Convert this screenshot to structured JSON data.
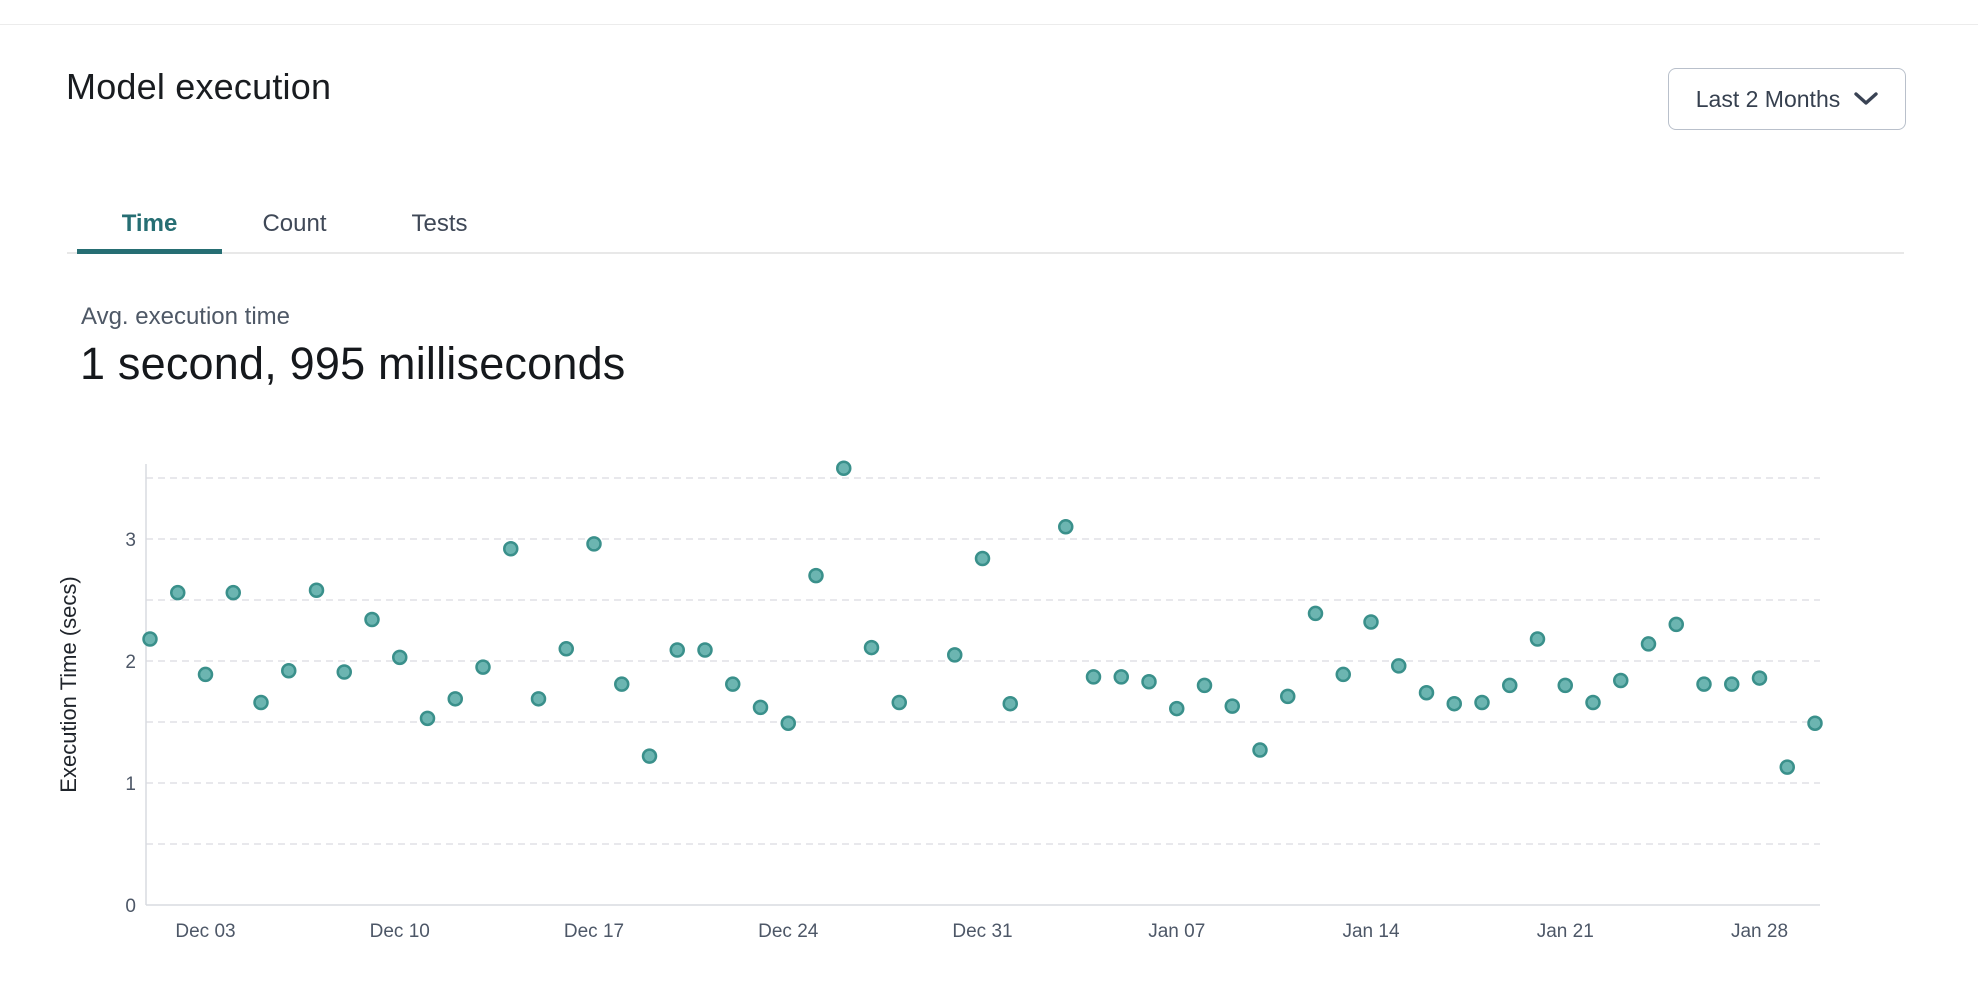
{
  "header": {
    "title": "Model execution",
    "range_selector": {
      "label": "Last 2 Months"
    }
  },
  "tabs": [
    {
      "label": "Time",
      "active": true
    },
    {
      "label": "Count",
      "active": false
    },
    {
      "label": "Tests",
      "active": false
    }
  ],
  "metric": {
    "label": "Avg. execution time",
    "value": "1 second, 995 milliseconds"
  },
  "colors": {
    "accent_teal": "#266e73",
    "point_fill": "#6cb5b1",
    "point_stroke": "#3a908b",
    "grid_line": "#e8e8ec",
    "axis_line": "#d8dbe0",
    "tick_label": "#4d5767",
    "axis_title": "#1f242b"
  },
  "chart_data": {
    "type": "scatter",
    "title": "",
    "xlabel": "",
    "ylabel": "Execution Time (secs)",
    "ylim": [
      0,
      3.6
    ],
    "yticks": [
      0,
      1,
      2,
      3
    ],
    "ygrid_step": 0.5,
    "ygrid_max": 3.5,
    "grid": "dashed",
    "legend": "none",
    "x_ticks": [
      {
        "i": 2,
        "label": "Dec 03"
      },
      {
        "i": 9,
        "label": "Dec 10"
      },
      {
        "i": 16,
        "label": "Dec 17"
      },
      {
        "i": 23,
        "label": "Dec 24"
      },
      {
        "i": 30,
        "label": "Dec 31"
      },
      {
        "i": 37,
        "label": "Jan 07"
      },
      {
        "i": 44,
        "label": "Jan 14"
      },
      {
        "i": 51,
        "label": "Jan 21"
      },
      {
        "i": 58,
        "label": "Jan 28"
      }
    ],
    "points": [
      {
        "i": 0,
        "date": "Dec 01",
        "value": 2.18
      },
      {
        "i": 1,
        "date": "Dec 02",
        "value": 2.56
      },
      {
        "i": 2,
        "date": "Dec 03",
        "value": 1.89
      },
      {
        "i": 3,
        "date": "Dec 04",
        "value": 2.56
      },
      {
        "i": 4,
        "date": "Dec 05",
        "value": 1.66
      },
      {
        "i": 5,
        "date": "Dec 06",
        "value": 1.92
      },
      {
        "i": 6,
        "date": "Dec 07",
        "value": 2.58
      },
      {
        "i": 7,
        "date": "Dec 08",
        "value": 1.91
      },
      {
        "i": 8,
        "date": "Dec 09",
        "value": 2.34
      },
      {
        "i": 9,
        "date": "Dec 10",
        "value": 2.03
      },
      {
        "i": 10,
        "date": "Dec 11",
        "value": 1.53
      },
      {
        "i": 11,
        "date": "Dec 12",
        "value": 1.69
      },
      {
        "i": 12,
        "date": "Dec 13",
        "value": 1.95
      },
      {
        "i": 13,
        "date": "Dec 14",
        "value": 2.92
      },
      {
        "i": 14,
        "date": "Dec 15",
        "value": 1.69
      },
      {
        "i": 15,
        "date": "Dec 16",
        "value": 2.1
      },
      {
        "i": 16,
        "date": "Dec 17",
        "value": 2.96
      },
      {
        "i": 17,
        "date": "Dec 18",
        "value": 1.81
      },
      {
        "i": 18,
        "date": "Dec 19",
        "value": 1.22
      },
      {
        "i": 19,
        "date": "Dec 20",
        "value": 2.09
      },
      {
        "i": 20,
        "date": "Dec 21",
        "value": 2.09
      },
      {
        "i": 21,
        "date": "Dec 22",
        "value": 1.81
      },
      {
        "i": 22,
        "date": "Dec 23",
        "value": 1.62
      },
      {
        "i": 23,
        "date": "Dec 24",
        "value": 1.49
      },
      {
        "i": 24,
        "date": "Dec 25",
        "value": 2.7
      },
      {
        "i": 25,
        "date": "Dec 26",
        "value": 3.58
      },
      {
        "i": 26,
        "date": "Dec 27",
        "value": 2.11
      },
      {
        "i": 27,
        "date": "Dec 28",
        "value": 1.66
      },
      {
        "i": 29,
        "date": "Dec 30",
        "value": 2.05
      },
      {
        "i": 30,
        "date": "Dec 31",
        "value": 2.84
      },
      {
        "i": 31,
        "date": "Jan 01",
        "value": 1.65
      },
      {
        "i": 33,
        "date": "Jan 03",
        "value": 3.1
      },
      {
        "i": 34,
        "date": "Jan 04",
        "value": 1.87
      },
      {
        "i": 35,
        "date": "Jan 05",
        "value": 1.87
      },
      {
        "i": 36,
        "date": "Jan 06",
        "value": 1.83
      },
      {
        "i": 37,
        "date": "Jan 07",
        "value": 1.61
      },
      {
        "i": 38,
        "date": "Jan 08",
        "value": 1.8
      },
      {
        "i": 39,
        "date": "Jan 09",
        "value": 1.63
      },
      {
        "i": 40,
        "date": "Jan 10",
        "value": 1.27
      },
      {
        "i": 41,
        "date": "Jan 11",
        "value": 1.71
      },
      {
        "i": 42,
        "date": "Jan 12",
        "value": 2.39
      },
      {
        "i": 43,
        "date": "Jan 13",
        "value": 1.89
      },
      {
        "i": 44,
        "date": "Jan 14",
        "value": 2.32
      },
      {
        "i": 45,
        "date": "Jan 15",
        "value": 1.96
      },
      {
        "i": 46,
        "date": "Jan 16",
        "value": 1.74
      },
      {
        "i": 47,
        "date": "Jan 17",
        "value": 1.65
      },
      {
        "i": 48,
        "date": "Jan 18",
        "value": 1.66
      },
      {
        "i": 49,
        "date": "Jan 19",
        "value": 1.8
      },
      {
        "i": 50,
        "date": "Jan 20",
        "value": 2.18
      },
      {
        "i": 51,
        "date": "Jan 21",
        "value": 1.8
      },
      {
        "i": 52,
        "date": "Jan 22",
        "value": 1.66
      },
      {
        "i": 53,
        "date": "Jan 23",
        "value": 1.84
      },
      {
        "i": 54,
        "date": "Jan 24",
        "value": 2.14
      },
      {
        "i": 55,
        "date": "Jan 25",
        "value": 2.3
      },
      {
        "i": 56,
        "date": "Jan 26",
        "value": 1.81
      },
      {
        "i": 57,
        "date": "Jan 27",
        "value": 1.81
      },
      {
        "i": 58,
        "date": "Jan 28",
        "value": 1.86
      },
      {
        "i": 59,
        "date": "Jan 29",
        "value": 1.13
      },
      {
        "i": 60,
        "date": "Jan 30",
        "value": 1.49
      }
    ]
  }
}
